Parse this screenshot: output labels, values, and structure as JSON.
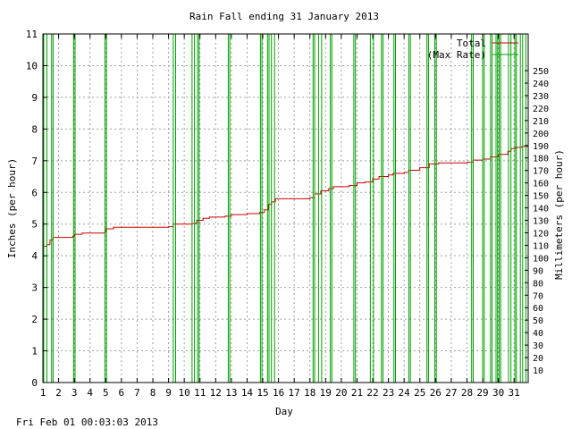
{
  "chart_data": {
    "type": "line",
    "title": "Rain Fall ending 31 January 2013",
    "xlabel": "Day",
    "ylabel": "Inches (per hour)",
    "y2label": "Millimeters (per hour)",
    "timestamp": "Fri Feb 01 00:03:03 2013",
    "xlim": [
      1,
      31.9
    ],
    "ylim": [
      0,
      11
    ],
    "y2lim": [
      0,
      279.4
    ],
    "x_ticks": [
      1,
      2,
      3,
      4,
      5,
      6,
      7,
      8,
      9,
      10,
      11,
      12,
      13,
      14,
      15,
      16,
      17,
      18,
      19,
      20,
      21,
      22,
      23,
      24,
      25,
      26,
      27,
      28,
      29,
      30,
      31
    ],
    "y_ticks": [
      0,
      1,
      2,
      3,
      4,
      5,
      6,
      7,
      8,
      9,
      10,
      11
    ],
    "y2_ticks": [
      10,
      20,
      30,
      40,
      50,
      60,
      70,
      80,
      90,
      100,
      110,
      120,
      130,
      140,
      150,
      160,
      170,
      180,
      190,
      200,
      210,
      220,
      230,
      240,
      250
    ],
    "grid": true,
    "legend_position": "top-right",
    "colors": {
      "total": "#cc0000",
      "max_rate": "#00a000"
    },
    "series": [
      {
        "name": "Total",
        "points": [
          [
            1.0,
            4.3
          ],
          [
            1.25,
            4.35
          ],
          [
            1.45,
            4.5
          ],
          [
            1.65,
            4.58
          ],
          [
            2.9,
            4.62
          ],
          [
            3.0,
            4.68
          ],
          [
            3.5,
            4.72
          ],
          [
            4.95,
            4.75
          ],
          [
            5.0,
            4.85
          ],
          [
            5.5,
            4.9
          ],
          [
            9.0,
            4.92
          ],
          [
            9.3,
            5.0
          ],
          [
            10.5,
            5.02
          ],
          [
            10.8,
            5.12
          ],
          [
            11.2,
            5.18
          ],
          [
            11.6,
            5.22
          ],
          [
            12.6,
            5.25
          ],
          [
            13.0,
            5.3
          ],
          [
            14.0,
            5.33
          ],
          [
            14.8,
            5.37
          ],
          [
            15.1,
            5.45
          ],
          [
            15.35,
            5.62
          ],
          [
            15.55,
            5.7
          ],
          [
            15.8,
            5.8
          ],
          [
            18.0,
            5.83
          ],
          [
            18.3,
            5.95
          ],
          [
            18.7,
            6.05
          ],
          [
            19.2,
            6.12
          ],
          [
            19.5,
            6.18
          ],
          [
            20.5,
            6.22
          ],
          [
            21.0,
            6.3
          ],
          [
            21.5,
            6.33
          ],
          [
            22.0,
            6.42
          ],
          [
            22.4,
            6.5
          ],
          [
            23.0,
            6.55
          ],
          [
            23.3,
            6.6
          ],
          [
            24.0,
            6.63
          ],
          [
            24.3,
            6.7
          ],
          [
            25.0,
            6.78
          ],
          [
            25.6,
            6.9
          ],
          [
            26.2,
            6.93
          ],
          [
            28.0,
            6.95
          ],
          [
            28.4,
            7.02
          ],
          [
            29.0,
            7.05
          ],
          [
            29.5,
            7.12
          ],
          [
            30.0,
            7.2
          ],
          [
            30.6,
            7.3
          ],
          [
            30.8,
            7.38
          ],
          [
            31.1,
            7.42
          ],
          [
            31.5,
            7.45
          ],
          [
            31.9,
            7.53
          ]
        ]
      },
      {
        "name": "(Max Rate)",
        "bursts": [
          [
            1.05,
            1.25
          ],
          [
            1.55,
            1.65
          ],
          [
            2.95,
            3.05
          ],
          [
            4.95,
            5.05
          ],
          [
            9.3,
            9.45
          ],
          [
            10.5,
            10.65
          ],
          [
            10.85,
            10.95
          ],
          [
            12.8,
            12.9
          ],
          [
            14.85,
            14.95
          ],
          [
            15.3,
            15.4
          ],
          [
            15.55,
            15.75
          ],
          [
            18.2,
            18.3
          ],
          [
            18.55,
            18.75
          ],
          [
            19.3,
            19.4
          ],
          [
            20.8,
            20.9
          ],
          [
            21.85,
            22.05
          ],
          [
            22.55,
            22.65
          ],
          [
            23.35,
            23.45
          ],
          [
            24.3,
            24.4
          ],
          [
            25.45,
            25.55
          ],
          [
            25.95,
            26.05
          ],
          [
            28.3,
            28.4
          ],
          [
            29.0,
            29.1
          ],
          [
            29.5,
            29.6
          ],
          [
            29.85,
            29.95
          ],
          [
            30.05,
            30.15
          ],
          [
            30.65,
            30.8
          ],
          [
            31.05,
            31.15
          ],
          [
            31.4,
            31.55
          ],
          [
            31.75,
            31.9
          ]
        ]
      }
    ]
  }
}
